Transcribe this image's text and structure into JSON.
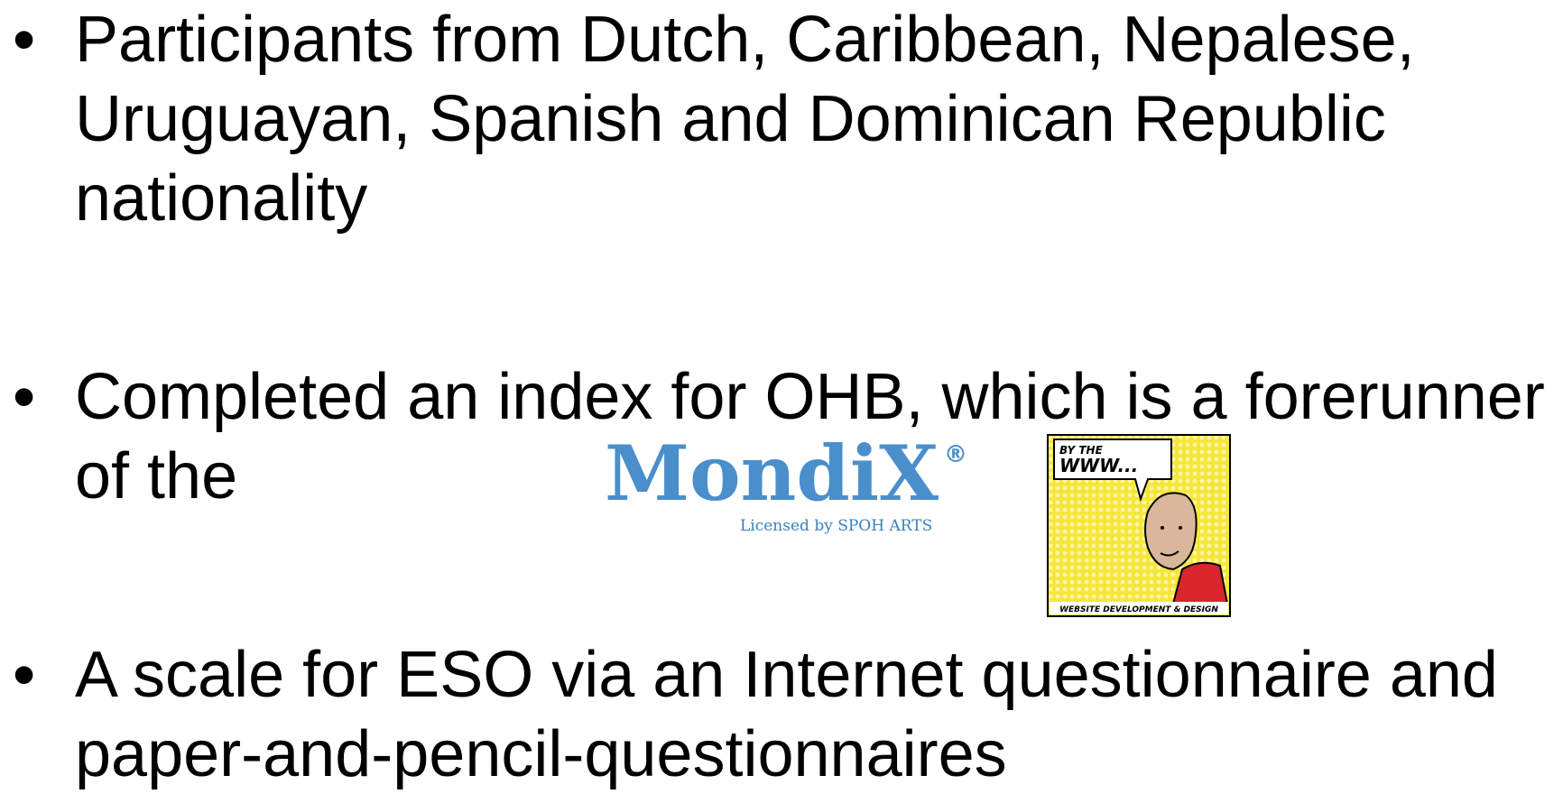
{
  "bullets": [
    "Participants from Dutch, Caribbean, Nepalese, Uruguayan, Spanish and Dominican Republic nationality",
    "Completed an index for OHB, which is a forerunner of the",
    "A scale for ESO via an Internet questionnaire and paper-and-pencil-questionnaires"
  ],
  "logo": {
    "name": "MondiX",
    "mark": "®",
    "license": "Licensed by SPOH ARTS"
  },
  "comic": {
    "top": "BY THE",
    "bubble": "WWW...",
    "caption": "WEBSITE DEVELOPMENT & DESIGN"
  }
}
